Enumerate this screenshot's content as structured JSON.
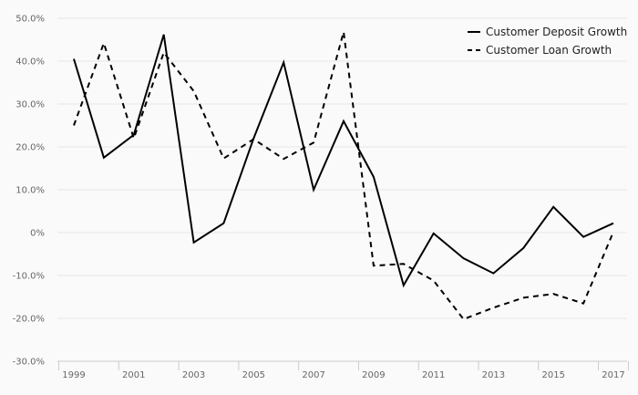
{
  "chart_data": {
    "type": "line",
    "title": "",
    "xlabel": "",
    "ylabel": "",
    "x": [
      1999,
      2000,
      2001,
      2002,
      2003,
      2004,
      2005,
      2006,
      2007,
      2008,
      2009,
      2010,
      2011,
      2012,
      2013,
      2014,
      2015,
      2016,
      2017
    ],
    "x_tick_labels": [
      "1999",
      "2001",
      "2003",
      "2005",
      "2007",
      "2009",
      "2011",
      "2013",
      "2015",
      "2017"
    ],
    "x_tick_values": [
      1999,
      2001,
      2003,
      2005,
      2007,
      2009,
      2011,
      2013,
      2015,
      2017
    ],
    "ylim": [
      -30,
      50
    ],
    "y_tick_values": [
      50,
      40,
      30,
      20,
      10,
      0,
      -10,
      -20,
      -30
    ],
    "y_tick_labels": [
      "50.0%",
      "40.0%",
      "30.0%",
      "20.0%",
      "10.0%",
      "0%",
      "-10.0%",
      "-20.0%",
      "-30.0%"
    ],
    "grid": true,
    "legend_position": "top-right",
    "series": [
      {
        "name": "Customer Deposit Growth",
        "style": "solid",
        "color": "#000000",
        "values": [
          40.5,
          17.5,
          22.8,
          46.2,
          -2.3,
          2.2,
          22.0,
          39.7,
          10.0,
          26.0,
          13.0,
          -12.3,
          -0.2,
          -6.0,
          -9.5,
          -3.6,
          6.0,
          -1.0,
          2.2
        ]
      },
      {
        "name": "Customer Loan Growth",
        "style": "dashed",
        "color": "#000000",
        "values": [
          25.0,
          44.2,
          22.0,
          42.0,
          33.0,
          17.3,
          21.8,
          17.2,
          21.0,
          46.8,
          -7.7,
          -7.3,
          -11.2,
          -20.2,
          -17.5,
          -15.2,
          -14.3,
          -16.5,
          0.2
        ]
      }
    ]
  }
}
